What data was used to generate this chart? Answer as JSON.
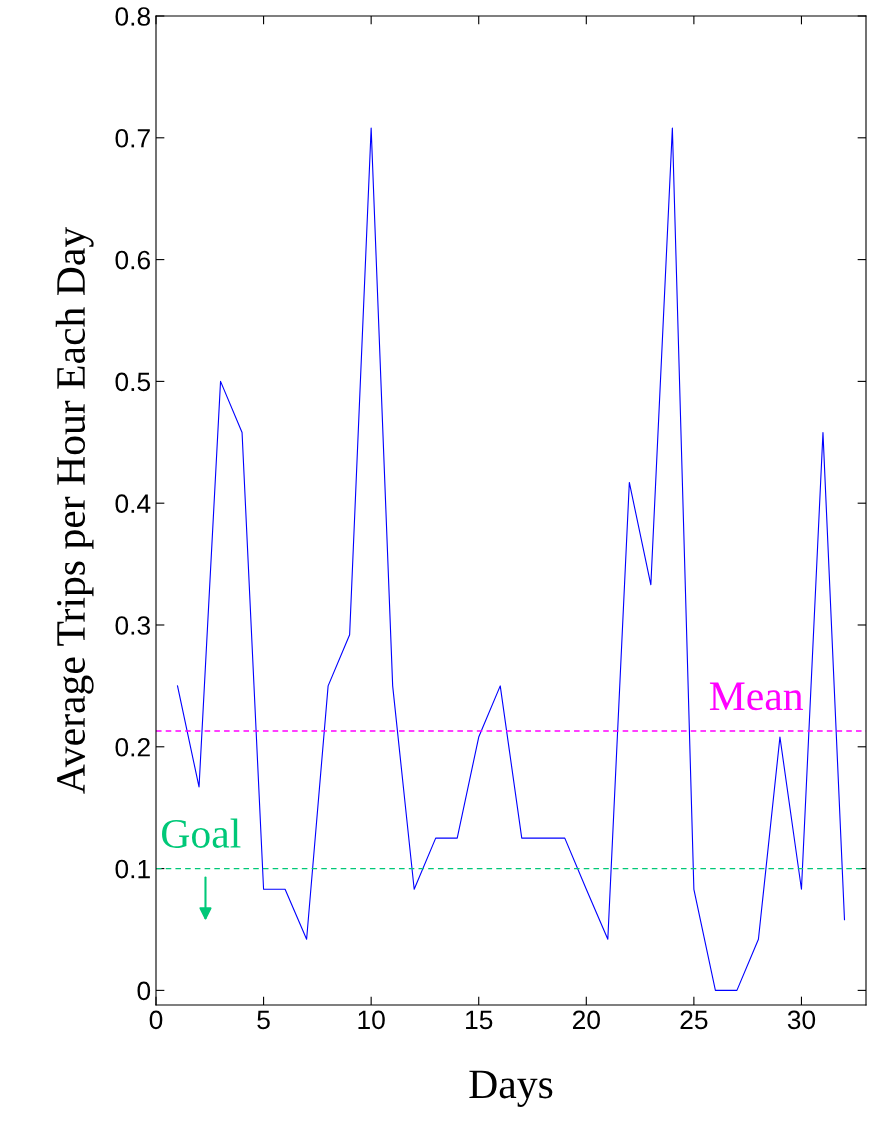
{
  "chart_data": {
    "type": "line",
    "xlabel": "Days",
    "ylabel": "Average Trips per Hour Each Day",
    "x": [
      1,
      2,
      3,
      4,
      5,
      6,
      7,
      8,
      9,
      10,
      11,
      12,
      13,
      14,
      15,
      16,
      17,
      18,
      19,
      20,
      21,
      22,
      23,
      24,
      25,
      26,
      27,
      28,
      29,
      30,
      31,
      32
    ],
    "series": [
      {
        "color": "#0000ff",
        "values": [
          0.25,
          0.167,
          0.5,
          0.458,
          0.083,
          0.083,
          0.042,
          0.25,
          0.292,
          0.708,
          0.25,
          0.083,
          0.125,
          0.125,
          0.208,
          0.25,
          0.125,
          0.125,
          0.125,
          0.083,
          0.042,
          0.417,
          0.333,
          0.708,
          0.083,
          0,
          0,
          0.042,
          0.208,
          0.083,
          0.458,
          0.058
        ]
      }
    ],
    "xlim": [
      0,
      33
    ],
    "xticks": [
      0,
      5,
      10,
      15,
      20,
      25,
      30
    ],
    "ylim": [
      -0.012,
      0.8
    ],
    "yticks": [
      0,
      0.1,
      0.2,
      0.3,
      0.4,
      0.5,
      0.6,
      0.7,
      0.8
    ],
    "ref_lines": [
      {
        "axis": "y",
        "value": 0.213,
        "label": "Mean",
        "color": "#ff00ff",
        "line_style": "dashed"
      },
      {
        "axis": "y",
        "value": 0.1,
        "label": "Goal",
        "color": "#00c878",
        "line_style": "dashed"
      }
    ],
    "grid": false,
    "legend": false,
    "marker": "none",
    "line_style": "solid"
  }
}
